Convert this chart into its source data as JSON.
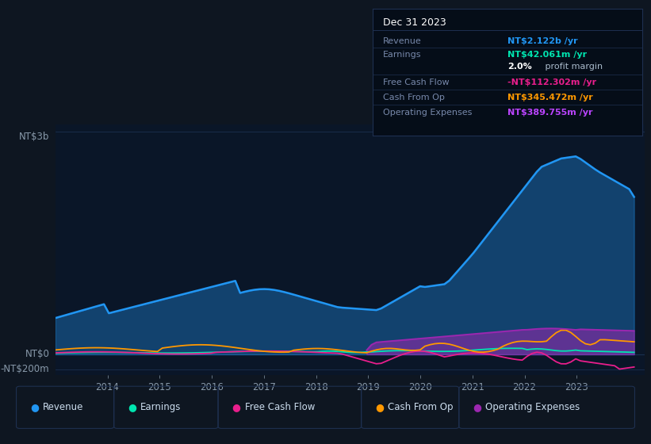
{
  "bg_color": "#0e1621",
  "plot_bg_color": "#0a1628",
  "grid_color": "#1a3050",
  "colors": {
    "revenue": "#2196f3",
    "earnings": "#00e5b0",
    "fcf": "#e91e8c",
    "cashfromop": "#ff9800",
    "opex": "#9c27b0"
  },
  "ylim": [
    -280,
    3100
  ],
  "xlim": [
    2013.0,
    2024.3
  ],
  "xticks": [
    2014,
    2015,
    2016,
    2017,
    2018,
    2019,
    2020,
    2021,
    2022,
    2023
  ],
  "ylabel_top": "NT$3b",
  "ylabel_zero": "NT$0",
  "ylabel_neg": "-NT$200m",
  "title_box": {
    "date": "Dec 31 2023",
    "rows": [
      {
        "label": "Revenue",
        "value": "NT$2.122b",
        "suffix": " /yr",
        "value_color": "#2196f3"
      },
      {
        "label": "Earnings",
        "value": "NT$42.061m",
        "suffix": " /yr",
        "value_color": "#00e5b0"
      },
      {
        "label": "",
        "value": "2.0%",
        "suffix": " profit margin",
        "value_color": "#ffffff",
        "bold_val": true
      },
      {
        "label": "Free Cash Flow",
        "value": "-NT$112.302m",
        "suffix": " /yr",
        "value_color": "#e91e8c"
      },
      {
        "label": "Cash From Op",
        "value": "NT$345.472m",
        "suffix": " /yr",
        "value_color": "#ff9800"
      },
      {
        "label": "Operating Expenses",
        "value": "NT$389.755m",
        "suffix": " /yr",
        "value_color": "#bb44ff"
      }
    ]
  },
  "legend": [
    {
      "label": "Revenue",
      "color": "#2196f3"
    },
    {
      "label": "Earnings",
      "color": "#00e5b0"
    },
    {
      "label": "Free Cash Flow",
      "color": "#e91e8c"
    },
    {
      "label": "Cash From Op",
      "color": "#ff9800"
    },
    {
      "label": "Operating Expenses",
      "color": "#9c27b0"
    }
  ],
  "n_points": 120,
  "x_start": 2013.0,
  "x_end": 2024.1
}
